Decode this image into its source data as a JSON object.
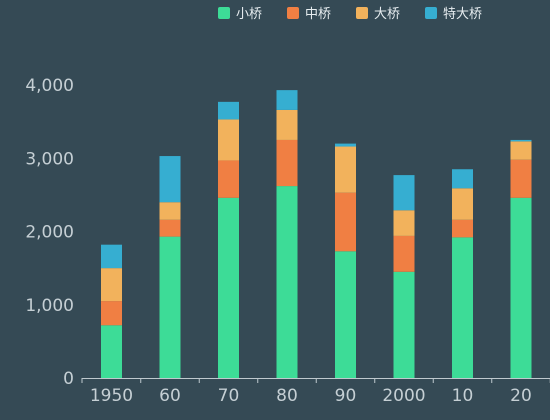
{
  "chart_data": {
    "type": "bar",
    "stacked": true,
    "categories": [
      "1950",
      "60",
      "70",
      "80",
      "90",
      "2000",
      "10",
      "20"
    ],
    "series": [
      {
        "name": "小桥",
        "color": "#3ddc97",
        "values": [
          720,
          1930,
          2460,
          2620,
          1730,
          1450,
          1920,
          2460
        ]
      },
      {
        "name": "中桥",
        "color": "#f07f43",
        "values": [
          330,
          230,
          510,
          630,
          800,
          490,
          240,
          520
        ]
      },
      {
        "name": "大桥",
        "color": "#f2b25c",
        "values": [
          450,
          240,
          560,
          410,
          630,
          350,
          430,
          250
        ]
      },
      {
        "name": "特大桥",
        "color": "#36aed1",
        "values": [
          320,
          630,
          240,
          270,
          40,
          480,
          260,
          20
        ]
      }
    ],
    "yticks": [
      "0",
      "1,000",
      "2,000",
      "3,000",
      "4,000"
    ],
    "ylim": [
      0,
      4500
    ],
    "legend_position": "top-right"
  }
}
